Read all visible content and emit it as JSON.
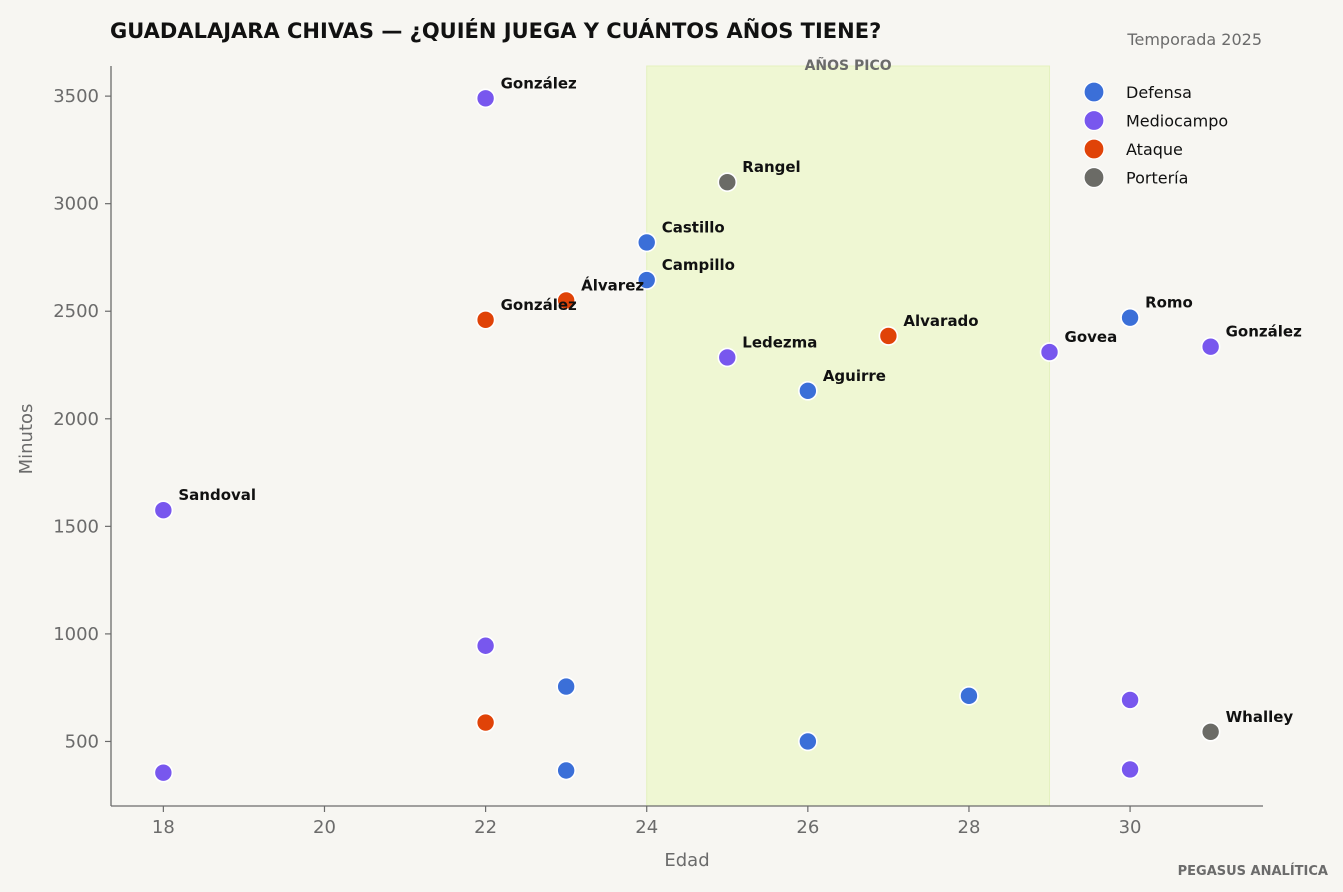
{
  "chart_data": {
    "type": "scatter",
    "title": "GUADALAJARA CHIVAS — ¿QUIÉN JUEGA Y CUÁNTOS AÑOS TIENE?",
    "subtitle": "Temporada 2025",
    "xlabel": "Edad",
    "ylabel": "Minutos",
    "xlim": [
      17.35,
      31.65
    ],
    "ylim": [
      200,
      3640
    ],
    "xticks": [
      18,
      20,
      22,
      24,
      26,
      28,
      30
    ],
    "yticks": [
      500,
      1000,
      1500,
      2000,
      2500,
      3000,
      3500
    ],
    "grid": false,
    "legend_position": "top-right",
    "highlight_band": {
      "x_from": 24,
      "x_to": 29,
      "label": "AÑOS PICO",
      "color": "#eff7d3"
    },
    "credit": "PEGASUS ANALÍTICA",
    "series": [
      {
        "name": "Defensa",
        "color": "#3b6fd8",
        "points": [
          {
            "x": 24,
            "y": 2820,
            "label": "Castillo"
          },
          {
            "x": 24,
            "y": 2645,
            "label": "Campillo"
          },
          {
            "x": 30,
            "y": 2470,
            "label": "Romo"
          },
          {
            "x": 26,
            "y": 2130,
            "label": "Aguirre"
          },
          {
            "x": 23,
            "y": 755,
            "label": ""
          },
          {
            "x": 28,
            "y": 712,
            "label": ""
          },
          {
            "x": 26,
            "y": 500,
            "label": ""
          },
          {
            "x": 23,
            "y": 365,
            "label": ""
          }
        ]
      },
      {
        "name": "Mediocampo",
        "color": "#7857ee",
        "points": [
          {
            "x": 22,
            "y": 3490,
            "label": "González"
          },
          {
            "x": 25,
            "y": 2285,
            "label": "Ledezma"
          },
          {
            "x": 29,
            "y": 2310,
            "label": "Govea"
          },
          {
            "x": 31,
            "y": 2335,
            "label": "González"
          },
          {
            "x": 18,
            "y": 1575,
            "label": "Sandoval"
          },
          {
            "x": 22,
            "y": 945,
            "label": ""
          },
          {
            "x": 30,
            "y": 693,
            "label": ""
          },
          {
            "x": 30,
            "y": 370,
            "label": ""
          },
          {
            "x": 18,
            "y": 355,
            "label": ""
          }
        ]
      },
      {
        "name": "Ataque",
        "color": "#e04308",
        "points": [
          {
            "x": 23,
            "y": 2550,
            "label": "Álvarez"
          },
          {
            "x": 22,
            "y": 2460,
            "label": "González"
          },
          {
            "x": 27,
            "y": 2385,
            "label": "Alvarado"
          },
          {
            "x": 22,
            "y": 588,
            "label": ""
          }
        ]
      },
      {
        "name": "Portería",
        "color": "#6b6b66",
        "points": [
          {
            "x": 25,
            "y": 3100,
            "label": "Rangel"
          },
          {
            "x": 31,
            "y": 545,
            "label": "Whalley"
          }
        ]
      }
    ]
  }
}
